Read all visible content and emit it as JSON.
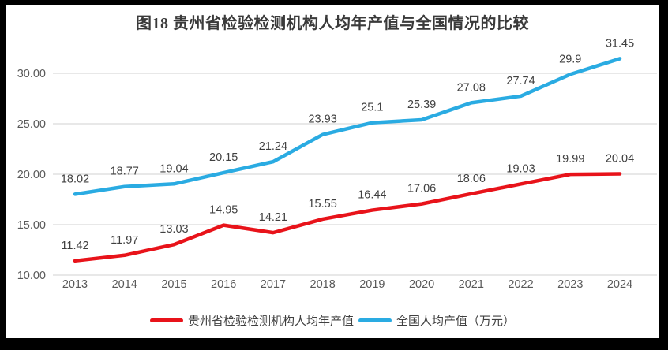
{
  "title": "图18  贵州省检验检测机构人均年产值与全国情况的比较",
  "chart_data": {
    "type": "line",
    "title": "图18  贵州省检验检测机构人均年产值与全国情况的比较",
    "categories": [
      "2013",
      "2014",
      "2015",
      "2016",
      "2017",
      "2018",
      "2019",
      "2020",
      "2021",
      "2022",
      "2023",
      "2024"
    ],
    "series": [
      {
        "name": "贵州省检验检测机构人均年产值",
        "color": "#e8131a",
        "values": [
          11.42,
          11.97,
          13.03,
          14.95,
          14.21,
          15.55,
          16.44,
          17.06,
          18.06,
          19.03,
          19.99,
          20.04
        ]
      },
      {
        "name": "全国人均产值（万元）",
        "color": "#2aabe2",
        "values": [
          18.02,
          18.77,
          19.04,
          20.15,
          21.24,
          23.93,
          25.1,
          25.39,
          27.08,
          27.74,
          29.9,
          31.45
        ]
      }
    ],
    "xlabel": "",
    "ylabel": "",
    "ylim": [
      10,
      30
    ],
    "ytick_step": 5,
    "ytick_labels": [
      "10.00",
      "15.00",
      "20.00",
      "25.00",
      "30.00"
    ],
    "grid": true,
    "data_labels": true,
    "legend_position": "bottom"
  },
  "colors": {
    "background": "#ffffff",
    "frame_border": "#000000",
    "grid": "#d9d9d9",
    "tick_text": "#595959",
    "data_label_text": "#404040",
    "title_text": "#3a3a3a",
    "legend_text": "#404040"
  }
}
